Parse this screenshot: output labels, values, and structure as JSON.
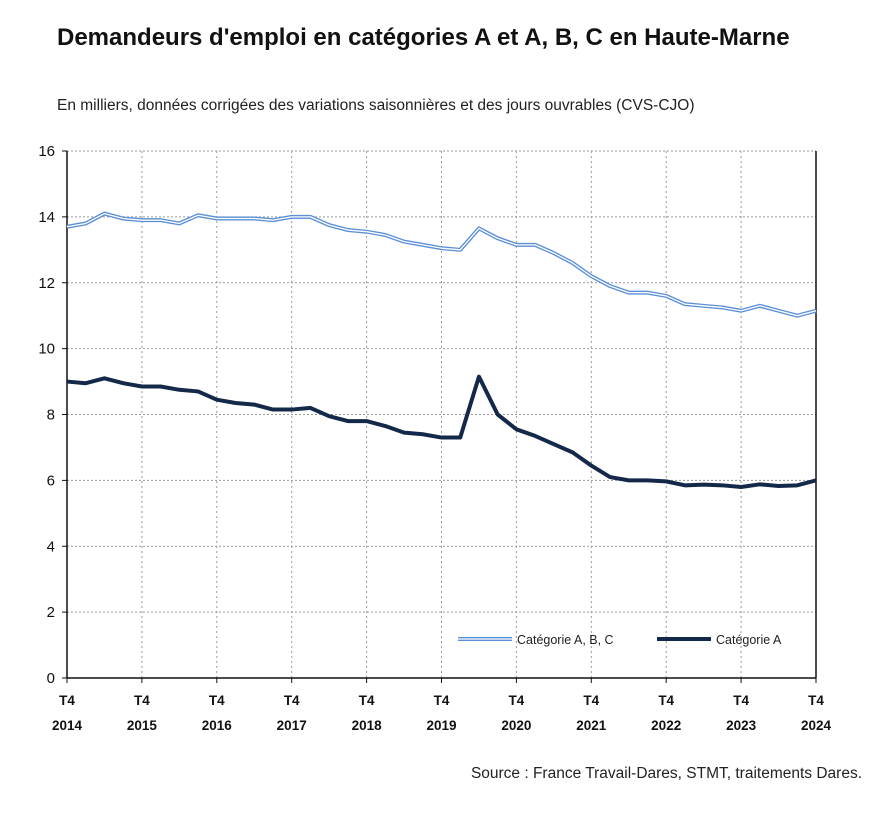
{
  "title": "Demandeurs d'emploi en catégories A et A, B, C en Haute-Marne",
  "subtitle": "En milliers, données corrigées des variations saisonnières et des jours ouvrables (CVS-CJO)",
  "source": "Source : France Travail-Dares, STMT, traitements Dares.",
  "chart_data": {
    "type": "line",
    "title": "Demandeurs d'emploi en catégories A et A, B, C en Haute-Marne",
    "xlabel": "",
    "ylabel": "En milliers",
    "ylim": [
      0,
      16
    ],
    "yticks": [
      "0",
      "2",
      "4",
      "6",
      "8",
      "10",
      "12",
      "14",
      "16"
    ],
    "xticks": [
      [
        "T4",
        "2014"
      ],
      [
        "T4",
        "2015"
      ],
      [
        "T4",
        "2016"
      ],
      [
        "T4",
        "2017"
      ],
      [
        "T4",
        "2018"
      ],
      [
        "T4",
        "2019"
      ],
      [
        "T4",
        "2020"
      ],
      [
        "T4",
        "2021"
      ],
      [
        "T4",
        "2022"
      ],
      [
        "T4",
        "2023"
      ],
      [
        "T4",
        "2024"
      ]
    ],
    "x_note": "quarterly from T4 2014 to T4 2024",
    "grid": true,
    "legend_position": "bottom-right",
    "series": [
      {
        "name": "Catégorie A, B, C",
        "color": "#5b8fd6",
        "style": "double",
        "values": [
          13.7,
          13.8,
          14.1,
          13.95,
          13.9,
          13.9,
          13.8,
          14.05,
          13.95,
          13.95,
          13.95,
          13.9,
          14.0,
          14.0,
          13.75,
          13.6,
          13.55,
          13.45,
          13.25,
          13.15,
          13.05,
          13.0,
          13.65,
          13.35,
          13.15,
          13.15,
          12.9,
          12.6,
          12.2,
          11.9,
          11.7,
          11.7,
          11.6,
          11.35,
          11.3,
          11.25,
          11.15,
          11.3,
          11.15,
          11.0,
          11.15
        ]
      },
      {
        "name": "Catégorie A",
        "color": "#14294a",
        "style": "solid",
        "values": [
          9.0,
          8.95,
          9.1,
          8.95,
          8.85,
          8.85,
          8.75,
          8.7,
          8.45,
          8.35,
          8.3,
          8.15,
          8.15,
          8.2,
          7.95,
          7.8,
          7.8,
          7.65,
          7.45,
          7.4,
          7.3,
          7.3,
          9.15,
          8.0,
          7.55,
          7.35,
          7.1,
          6.85,
          6.45,
          6.1,
          6.0,
          6.0,
          5.97,
          5.85,
          5.87,
          5.85,
          5.8,
          5.88,
          5.83,
          5.85,
          6.0
        ]
      }
    ]
  }
}
